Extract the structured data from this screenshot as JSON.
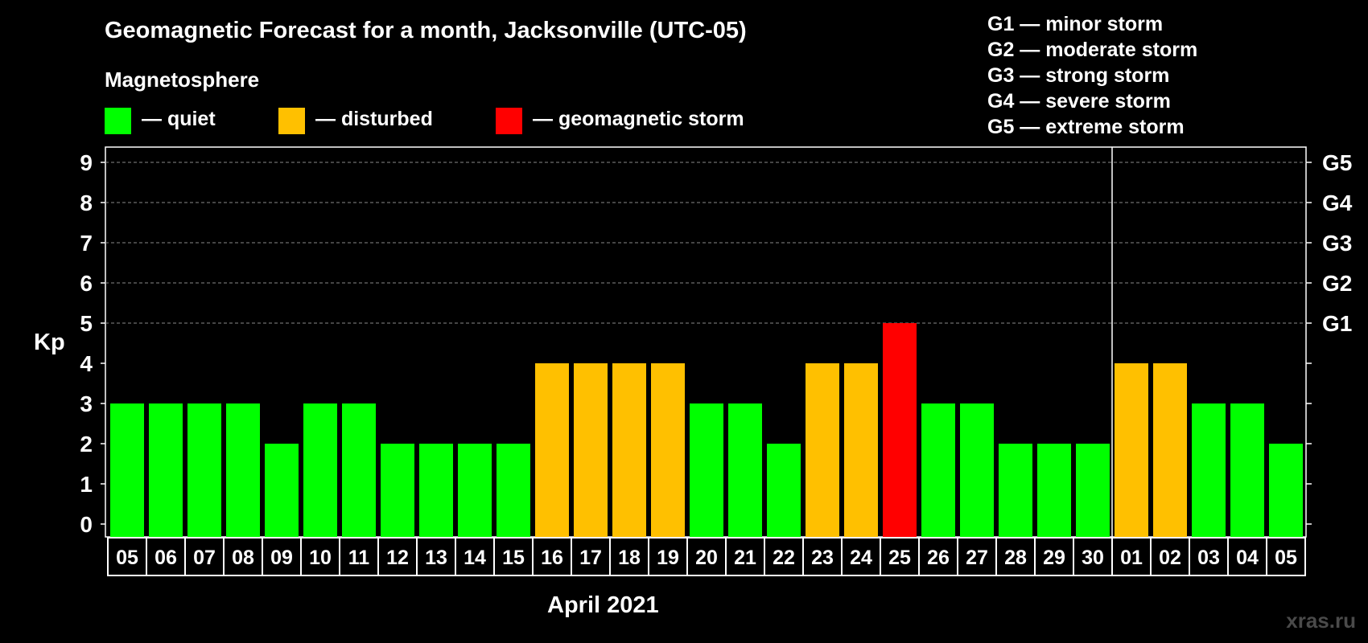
{
  "title": "Geomagnetic Forecast for a month, Jacksonville (UTC-05)",
  "subtitle": "Magnetosphere",
  "legend": [
    {
      "label": "— quiet",
      "color": "#00ff00"
    },
    {
      "label": "— disturbed",
      "color": "#ffc000"
    },
    {
      "label": "— geomagnetic storm",
      "color": "#ff0000"
    }
  ],
  "storm_scale": [
    "G1 — minor storm",
    "G2 — moderate storm",
    "G3 — strong storm",
    "G4 — severe storm",
    "G5 — extreme storm"
  ],
  "watermark": "xras.ru",
  "colors": {
    "quiet": "#00ff00",
    "disturbed": "#ffc000",
    "storm": "#ff0000",
    "background": "#000000",
    "axis": "#ffffff"
  },
  "chart_data": {
    "type": "bar",
    "title": "Geomagnetic Forecast for a month, Jacksonville (UTC-05)",
    "xlabel": "April 2021",
    "ylabel": "Kp",
    "ylim": [
      0,
      9
    ],
    "yticks": [
      "0",
      "1",
      "2",
      "3",
      "4",
      "5",
      "6",
      "7",
      "8",
      "9"
    ],
    "right_ticks": [
      {
        "value": 5,
        "label": "G1"
      },
      {
        "value": 6,
        "label": "G2"
      },
      {
        "value": 7,
        "label": "G3"
      },
      {
        "value": 8,
        "label": "G4"
      },
      {
        "value": 9,
        "label": "G5"
      }
    ],
    "gridlines": [
      5,
      6,
      7,
      8,
      9
    ],
    "categories": [
      "05",
      "06",
      "07",
      "08",
      "09",
      "10",
      "11",
      "12",
      "13",
      "14",
      "15",
      "16",
      "17",
      "18",
      "19",
      "20",
      "21",
      "22",
      "23",
      "24",
      "25",
      "26",
      "27",
      "28",
      "29",
      "30",
      "01",
      "02",
      "03",
      "04",
      "05"
    ],
    "values": [
      3,
      3,
      3,
      3,
      2,
      3,
      3,
      2,
      2,
      2,
      2,
      4,
      4,
      4,
      4,
      3,
      3,
      2,
      4,
      4,
      5,
      3,
      3,
      2,
      2,
      2,
      4,
      4,
      3,
      3,
      2
    ],
    "levels": [
      "quiet",
      "quiet",
      "quiet",
      "quiet",
      "quiet",
      "quiet",
      "quiet",
      "quiet",
      "quiet",
      "quiet",
      "quiet",
      "disturbed",
      "disturbed",
      "disturbed",
      "disturbed",
      "quiet",
      "quiet",
      "quiet",
      "disturbed",
      "disturbed",
      "storm",
      "quiet",
      "quiet",
      "quiet",
      "quiet",
      "quiet",
      "disturbed",
      "disturbed",
      "quiet",
      "quiet",
      "quiet"
    ],
    "month_divider_after_index": 25
  }
}
